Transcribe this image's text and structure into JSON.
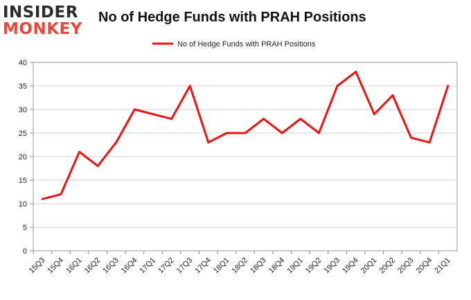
{
  "brand": {
    "line1": "INSIDER",
    "line2": "MONKEY"
  },
  "chart_data": {
    "type": "line",
    "title": "No of Hedge Funds with PRAH Positions",
    "xlabel": "",
    "ylabel": "",
    "categories": [
      "15Q3",
      "15Q4",
      "16Q1",
      "16Q2",
      "16Q3",
      "16Q4",
      "17Q1",
      "17Q2",
      "17Q3",
      "17Q4",
      "18Q1",
      "18Q2",
      "18Q3",
      "18Q4",
      "19Q1",
      "19Q2",
      "19Q3",
      "19Q4",
      "20Q1",
      "20Q2",
      "20Q3",
      "20Q4",
      "21Q1"
    ],
    "series": [
      {
        "name": "No of Hedge Funds with PRAH Positions",
        "values": [
          11,
          12,
          21,
          18,
          23,
          30,
          29,
          28,
          35,
          23,
          25,
          25,
          28,
          25,
          28,
          25,
          35,
          38,
          29,
          33,
          24,
          23,
          35
        ],
        "color": "#ee1111"
      }
    ],
    "ylim": [
      0,
      40
    ],
    "yticks": [
      0,
      5,
      10,
      15,
      20,
      25,
      30,
      35,
      40
    ],
    "grid": true,
    "legend_position": "top-center"
  }
}
